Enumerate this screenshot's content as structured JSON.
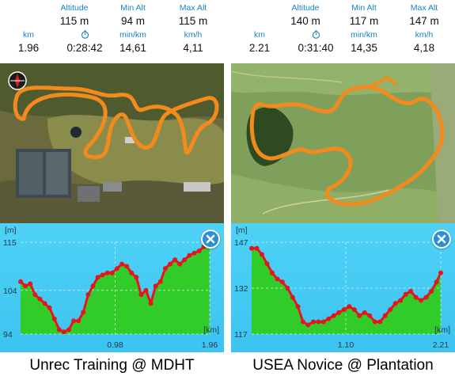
{
  "panels": [
    {
      "stats": {
        "altitude": {
          "label": "Altitude",
          "value": "115 m"
        },
        "min_alt": {
          "label": "Min Alt",
          "value": "94 m"
        },
        "max_alt": {
          "label": "Max Alt",
          "value": "115 m"
        },
        "km": {
          "label": "km",
          "value": "1.96"
        },
        "time": {
          "icon": "stopwatch-icon",
          "value": "0:28:42"
        },
        "pace": {
          "label": "min/km",
          "value": "14,61"
        },
        "speed": {
          "label": "km/h",
          "value": "4,11"
        }
      },
      "map": {
        "track_color": "#f28a1e",
        "compass_icon": "compass-icon"
      },
      "chart_data": {
        "type": "area",
        "unit_x": "[km]",
        "unit_y": "[m]",
        "y_ticks": [
          "115",
          "104",
          "94"
        ],
        "x_ticks": [
          "0.98",
          "1.96"
        ],
        "xlim": [
          0,
          1.96
        ],
        "ylim": [
          94,
          115
        ],
        "x": [
          0,
          0.05,
          0.1,
          0.15,
          0.2,
          0.25,
          0.3,
          0.35,
          0.4,
          0.45,
          0.5,
          0.55,
          0.6,
          0.65,
          0.7,
          0.75,
          0.8,
          0.85,
          0.9,
          0.95,
          1.0,
          1.05,
          1.1,
          1.15,
          1.2,
          1.25,
          1.3,
          1.35,
          1.4,
          1.45,
          1.5,
          1.55,
          1.6,
          1.65,
          1.7,
          1.75,
          1.8,
          1.85,
          1.9,
          1.96
        ],
        "values": [
          106,
          105,
          105.5,
          103,
          102,
          101,
          100,
          97.5,
          95,
          94.5,
          95,
          97,
          97,
          99,
          103,
          105,
          107,
          107.5,
          108,
          108,
          109,
          110,
          109.5,
          108,
          107,
          103,
          104,
          101,
          105,
          106,
          109,
          110,
          111,
          110,
          111,
          112,
          112.5,
          113,
          114,
          115
        ]
      },
      "caption": "Unrec Training @ MDHT"
    },
    {
      "stats": {
        "altitude": {
          "label": "Altitude",
          "value": "140 m"
        },
        "min_alt": {
          "label": "Min Alt",
          "value": "117 m"
        },
        "max_alt": {
          "label": "Max Alt",
          "value": "147 m"
        },
        "km": {
          "label": "km",
          "value": "2.21"
        },
        "time": {
          "icon": "stopwatch-icon",
          "value": "0:31:40"
        },
        "pace": {
          "label": "min/km",
          "value": "14,35"
        },
        "speed": {
          "label": "km/h",
          "value": "4,18"
        }
      },
      "map": {
        "track_color": "#f28a1e"
      },
      "chart_data": {
        "type": "area",
        "unit_x": "[km]",
        "unit_y": "[m]",
        "y_ticks": [
          "147",
          "132",
          "117"
        ],
        "x_ticks": [
          "1.10",
          "2.21"
        ],
        "xlim": [
          0,
          2.21
        ],
        "ylim": [
          117,
          147
        ],
        "x": [
          0,
          0.06,
          0.12,
          0.18,
          0.24,
          0.3,
          0.36,
          0.42,
          0.48,
          0.54,
          0.6,
          0.66,
          0.72,
          0.78,
          0.84,
          0.9,
          0.96,
          1.02,
          1.08,
          1.14,
          1.2,
          1.26,
          1.32,
          1.38,
          1.44,
          1.5,
          1.56,
          1.62,
          1.68,
          1.74,
          1.8,
          1.86,
          1.92,
          1.98,
          2.04,
          2.1,
          2.16,
          2.21
        ],
        "values": [
          145,
          145,
          143,
          140,
          137,
          135,
          134,
          132,
          129,
          126,
          121,
          120,
          121,
          121,
          121,
          122,
          123,
          124,
          125,
          126,
          125,
          123,
          124,
          123,
          121,
          121,
          123,
          125,
          127,
          128,
          130,
          131,
          129,
          128,
          129,
          131,
          134,
          137
        ]
      },
      "caption": "USEA Novice @ Plantation"
    }
  ]
}
